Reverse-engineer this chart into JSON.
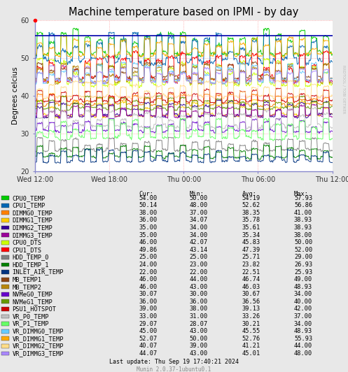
{
  "title": "Machine temperature based on IPMI - by day",
  "ylabel": "Degrees celcius",
  "background_color": "#e8e8e8",
  "plot_bg_color": "#ffffff",
  "title_fontsize": 10.5,
  "sidebar_text": "RRDTOOL / TOBI OETIKER",
  "ylim": [
    20,
    60
  ],
  "yticks": [
    20,
    30,
    40,
    50,
    60
  ],
  "xlabel_ticks": [
    "Wed 12:00",
    "Wed 18:00",
    "Thu 00:00",
    "Thu 06:00",
    "Thu 12:00"
  ],
  "sensors": [
    {
      "name": "CPU0_TEMP",
      "color": "#00cc00",
      "cur": 54.0,
      "min": 50.0,
      "avg": 54.19,
      "max": 57.93
    },
    {
      "name": "CPU1_TEMP",
      "color": "#0066b3",
      "cur": 50.14,
      "min": 48.0,
      "avg": 52.62,
      "max": 56.86
    },
    {
      "name": "DIMMG0_TEMP",
      "color": "#ff8000",
      "cur": 38.0,
      "min": 37.0,
      "avg": 38.35,
      "max": 41.0
    },
    {
      "name": "DIMMG1_TEMP",
      "color": "#ffcc00",
      "cur": 36.0,
      "min": 34.07,
      "avg": 35.78,
      "max": 38.93
    },
    {
      "name": "DIMMG2_TEMP",
      "color": "#330099",
      "cur": 35.0,
      "min": 34.0,
      "avg": 35.61,
      "max": 38.93
    },
    {
      "name": "DIMMG3_TEMP",
      "color": "#990099",
      "cur": 35.0,
      "min": 34.0,
      "avg": 35.34,
      "max": 38.0
    },
    {
      "name": "CPU0_DTS",
      "color": "#ccff00",
      "cur": 46.0,
      "min": 42.07,
      "avg": 45.83,
      "max": 50.0
    },
    {
      "name": "CPU1_DTS",
      "color": "#ff0000",
      "cur": 49.86,
      "min": 43.14,
      "avg": 47.39,
      "max": 52.0
    },
    {
      "name": "HDD_TEMP_0",
      "color": "#808080",
      "cur": 25.0,
      "min": 25.0,
      "avg": 25.71,
      "max": 29.0
    },
    {
      "name": "HDD_TEMP_1",
      "color": "#008000",
      "cur": 24.0,
      "min": 23.0,
      "avg": 23.82,
      "max": 26.93
    },
    {
      "name": "INLET_AIR_TEMP",
      "color": "#003380",
      "cur": 22.0,
      "min": 22.0,
      "avg": 22.51,
      "max": 25.93
    },
    {
      "name": "MB_TEMP1",
      "color": "#8b4513",
      "cur": 46.0,
      "min": 44.0,
      "avg": 46.74,
      "max": 49.0
    },
    {
      "name": "MB_TEMP2",
      "color": "#b8860b",
      "cur": 46.0,
      "min": 43.0,
      "avg": 46.03,
      "max": 48.93
    },
    {
      "name": "NVMeG0_TEMP",
      "color": "#6600cc",
      "cur": 30.07,
      "min": 30.0,
      "avg": 30.67,
      "max": 34.0
    },
    {
      "name": "NVMeG1_TEMP",
      "color": "#669900",
      "cur": 36.0,
      "min": 36.0,
      "avg": 36.56,
      "max": 40.0
    },
    {
      "name": "PSU1_HOTSPOT",
      "color": "#cc0000",
      "cur": 39.0,
      "min": 38.0,
      "avg": 39.13,
      "max": 42.0
    },
    {
      "name": "VR_P0_TEMP",
      "color": "#c0c0c0",
      "cur": 33.0,
      "min": 31.0,
      "avg": 33.26,
      "max": 37.0
    },
    {
      "name": "VR_P1_TEMP",
      "color": "#66ff66",
      "cur": 29.07,
      "min": 28.07,
      "avg": 30.21,
      "max": 34.0
    },
    {
      "name": "VR_DIMMG0_TEMP",
      "color": "#66ccff",
      "cur": 45.0,
      "min": 43.0,
      "avg": 45.55,
      "max": 48.93
    },
    {
      "name": "VR_DIMMG1_TEMP",
      "color": "#ffaa00",
      "cur": 52.07,
      "min": 50.0,
      "avg": 52.76,
      "max": 55.93
    },
    {
      "name": "VR_DIMMG2_TEMP",
      "color": "#ffdd88",
      "cur": 40.07,
      "min": 39.0,
      "avg": 41.21,
      "max": 44.0
    },
    {
      "name": "VR_DIMMG3_TEMP",
      "color": "#aa88ff",
      "cur": 44.07,
      "min": 43.0,
      "avg": 45.01,
      "max": 48.0
    }
  ],
  "last_update": "Last update: Thu Sep 19 17:40:21 2024",
  "munin_version": "Munin 2.0.37-1ubuntu0.1",
  "horizon_line_color": "#0000aa",
  "horizon_line_val": 56,
  "red_dot_color": "#ff0000",
  "grid_h_color": "#ff9999",
  "grid_v_color": "#ff9999",
  "arrow_color": "#8888cc"
}
